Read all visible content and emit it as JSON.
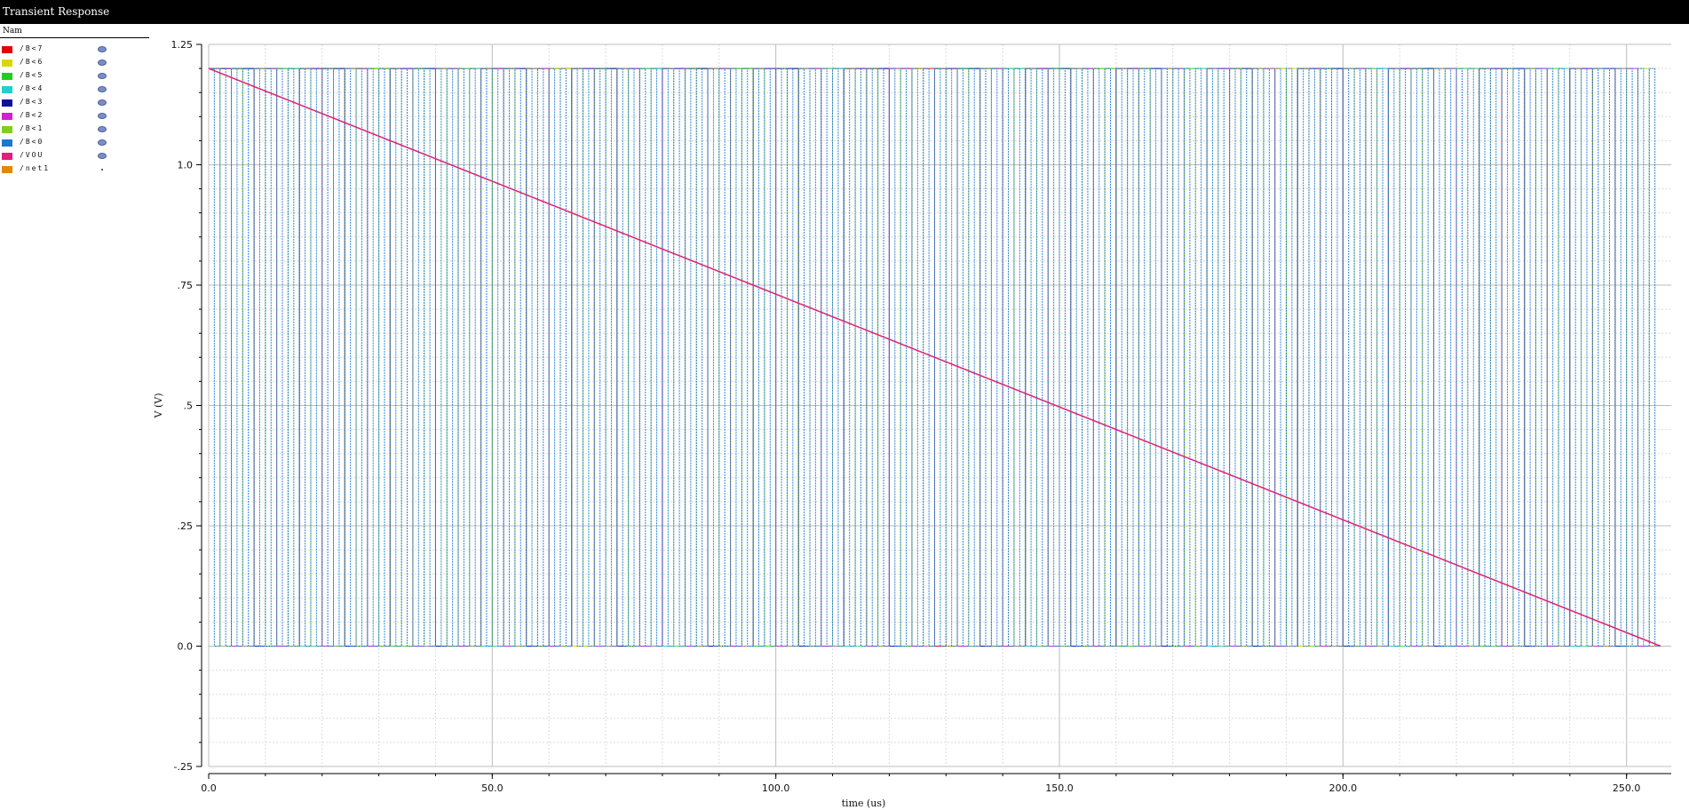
{
  "window": {
    "title": "Transient Response"
  },
  "legend": {
    "header": "Nam",
    "items": [
      {
        "label": "/B<7",
        "color": "#e00000",
        "visible": true
      },
      {
        "label": "/B<6",
        "color": "#d8d800",
        "visible": true
      },
      {
        "label": "/B<5",
        "color": "#22cc22",
        "visible": true
      },
      {
        "label": "/B<4",
        "color": "#22d0d0",
        "visible": true
      },
      {
        "label": "/B<3",
        "color": "#1010a0",
        "visible": true
      },
      {
        "label": "/B<2",
        "color": "#d020d0",
        "visible": true
      },
      {
        "label": "/B<1",
        "color": "#7fd01a",
        "visible": true
      },
      {
        "label": "/B<0",
        "color": "#1a78d0",
        "visible": true
      },
      {
        "label": "/VOU",
        "color": "#e0207a",
        "visible": true
      },
      {
        "label": "/net1",
        "color": "#e08a00",
        "visible": false
      }
    ]
  },
  "chart_data": {
    "type": "line",
    "xlabel": "time (us)",
    "ylabel": "V (V)",
    "xlim": [
      0,
      256
    ],
    "ylim": [
      -0.25,
      1.25
    ],
    "x_ticks": [
      {
        "value": 0,
        "label": "0.0"
      },
      {
        "value": 50,
        "label": "50.0"
      },
      {
        "value": 100,
        "label": "100.0"
      },
      {
        "value": 150,
        "label": "150.0"
      },
      {
        "value": 200,
        "label": "200.0"
      },
      {
        "value": 250,
        "label": "250.0"
      }
    ],
    "y_ticks": [
      {
        "value": 1.25,
        "label": "1.25"
      },
      {
        "value": 1.0,
        "label": "1.0"
      },
      {
        "value": 0.75,
        "label": ".75"
      },
      {
        "value": 0.5,
        "label": ".5"
      },
      {
        "value": 0.25,
        "label": ".25"
      },
      {
        "value": 0.0,
        "label": "0.0"
      },
      {
        "value": -0.25,
        "label": "-.25"
      }
    ],
    "grid": true,
    "logic_high": 1.2,
    "logic_low": 0.0,
    "digital_series": [
      {
        "name": "/B<7",
        "color": "#e00000",
        "period_us": 256
      },
      {
        "name": "/B<6",
        "color": "#d8d800",
        "period_us": 128
      },
      {
        "name": "/B<5",
        "color": "#22cc22",
        "period_us": 64
      },
      {
        "name": "/B<4",
        "color": "#22d0d0",
        "period_us": 32
      },
      {
        "name": "/B<3",
        "color": "#1010a0",
        "period_us": 16
      },
      {
        "name": "/B<2",
        "color": "#d020d0",
        "period_us": 8
      },
      {
        "name": "/B<1",
        "color": "#7fd01a",
        "period_us": 4
      },
      {
        "name": "/B<0",
        "color": "#1a78d0",
        "period_us": 2
      }
    ],
    "analog_series": [
      {
        "name": "/VOU",
        "color": "#e0207a",
        "x": [
          0,
          256
        ],
        "y": [
          1.2,
          0.0
        ]
      }
    ]
  }
}
